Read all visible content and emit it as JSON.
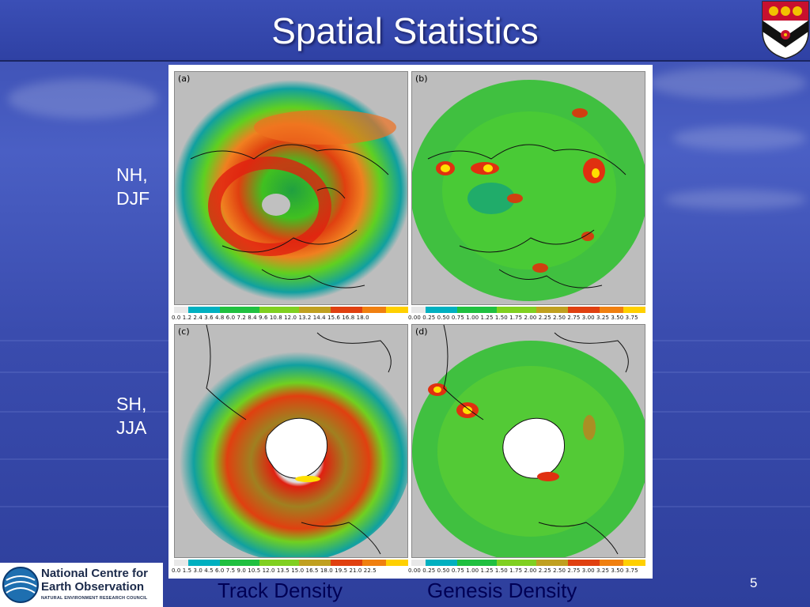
{
  "slide": {
    "title": "Spatial Statistics",
    "page_number": "5"
  },
  "rows": [
    {
      "label_line1": "NH,",
      "label_line2": "DJF"
    },
    {
      "label_line1": "SH,",
      "label_line2": "JJA"
    }
  ],
  "panels": [
    {
      "label": "(a)",
      "colorbar": "0.0 1.2 2.4 3.6 4.8 6.0 7.2 8.4 9.6 10.8 12.0 13.2 14.4 15.6 16.8 18.0"
    },
    {
      "label": "(b)",
      "colorbar": "0.00 0.25 0.50 0.75 1.00 1.25 1.50 1.75 2.00 2.25 2.50 2.75 3.00 3.25 3.50 3.75"
    },
    {
      "label": "(c)",
      "colorbar": "0.0 1.5 3.0 4.5 6.0 7.5 9.0 10.5 12.0 13.5 15.0 16.5 18.0 19.5 21.0 22.5"
    },
    {
      "label": "(d)",
      "colorbar": "0.00 0.25 0.50 0.75 1.00 1.25 1.50 1.75 2.00 2.25 2.50 2.75 3.00 3.25 3.50 3.75"
    }
  ],
  "captions": {
    "left": "Track Density",
    "right": "Genesis Density"
  },
  "logo": {
    "line1": "National Centre for",
    "line2": "Earth Observation",
    "line3": "NATURAL ENVIRONMENT RESEARCH COUNCIL"
  },
  "colors": {
    "background": "#3a4db0",
    "title_text": "#ffffff",
    "caption_text": "#000055",
    "density_scale": [
      "#00b4d8",
      "#00c060",
      "#40e000",
      "#a0e000",
      "#e0c000",
      "#f08000",
      "#e02000",
      "#ffe000"
    ]
  }
}
